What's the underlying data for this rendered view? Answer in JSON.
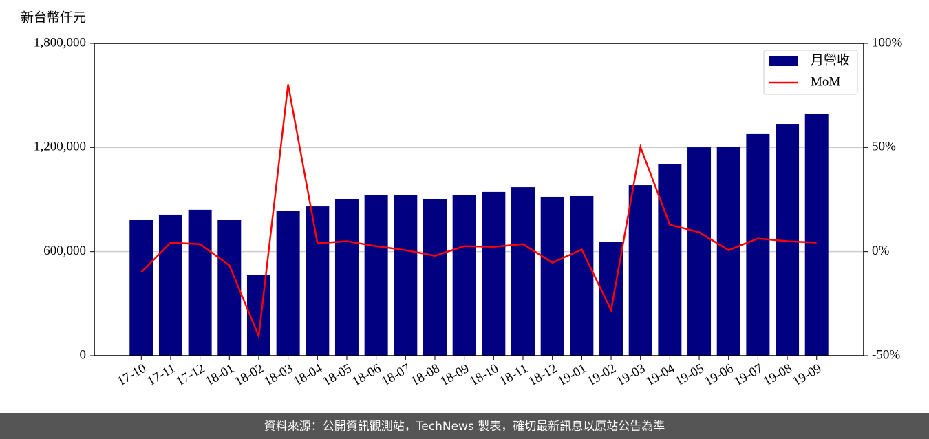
{
  "chart_data": {
    "type": "bar-line",
    "y_label": "新台幣仟元",
    "categories": [
      "17-10",
      "17-11",
      "17-12",
      "18-01",
      "18-02",
      "18-03",
      "18-04",
      "18-05",
      "18-06",
      "18-07",
      "18-08",
      "18-09",
      "18-10",
      "18-11",
      "18-12",
      "19-01",
      "19-02",
      "19-03",
      "19-04",
      "19-05",
      "19-06",
      "19-07",
      "19-08",
      "19-09"
    ],
    "series": [
      {
        "name": "月營收",
        "type": "bar",
        "color": "#000080",
        "values": [
          781000,
          813000,
          841000,
          781000,
          464000,
          833000,
          860000,
          904000,
          924000,
          924000,
          904000,
          924000,
          944000,
          971000,
          916000,
          920000,
          658000,
          983000,
          1106000,
          1201000,
          1205000,
          1277000,
          1336000,
          1392000
        ]
      },
      {
        "name": "MoM",
        "type": "line",
        "axis": "y2",
        "color": "#ff0000",
        "values": [
          -9.9,
          4.3,
          3.6,
          -6.6,
          -40.6,
          80.3,
          4.0,
          5.0,
          2.6,
          0.7,
          -2.0,
          2.6,
          2.3,
          3.6,
          -5.3,
          1.0,
          -28.1,
          50.2,
          12.9,
          9.3,
          0.7,
          6.3,
          5.0,
          4.3
        ]
      }
    ],
    "ylim": [
      0,
      1800000
    ],
    "yticks": [
      0,
      {
        "value": 600000,
        "label": "600,000"
      },
      {
        "value": 1200000,
        "label": "1,200,000"
      },
      {
        "value": 1800000,
        "label": "1,800,000"
      }
    ],
    "y2lim": [
      -50,
      100
    ],
    "y2ticks": [
      {
        "value": -50,
        "label": "-50%"
      },
      {
        "value": 0,
        "label": "0%"
      },
      {
        "value": 50,
        "label": "50%"
      },
      {
        "value": 100,
        "label": "100%"
      }
    ],
    "grid": true,
    "legend": "upper right",
    "footer": "資料來源：公開資訊觀測站，TechNews 製表，確切最新訊息以原站公告為準"
  }
}
